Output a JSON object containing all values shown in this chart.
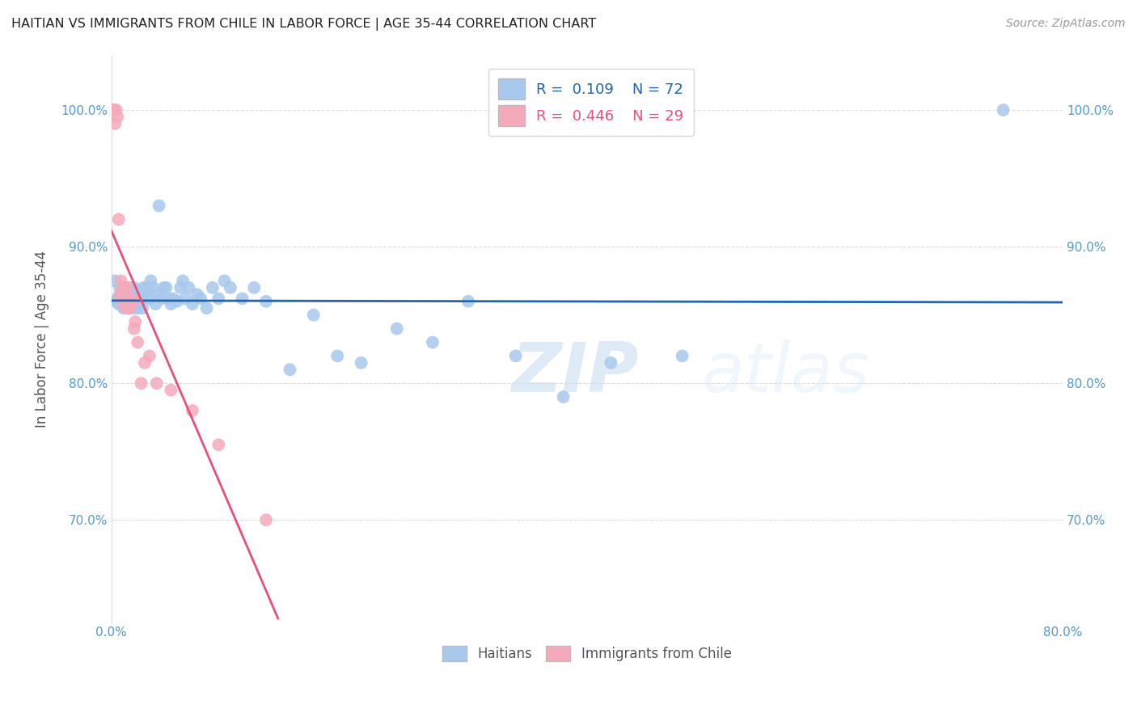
{
  "title": "HAITIAN VS IMMIGRANTS FROM CHILE IN LABOR FORCE | AGE 35-44 CORRELATION CHART",
  "source": "Source: ZipAtlas.com",
  "ylabel": "In Labor Force | Age 35-44",
  "xlim": [
    0.0,
    0.8
  ],
  "ylim": [
    0.625,
    1.04
  ],
  "xticks": [
    0.0,
    0.8
  ],
  "xticklabels": [
    "0.0%",
    "80.0%"
  ],
  "yticks": [
    0.7,
    0.8,
    0.9,
    1.0
  ],
  "yticklabels": [
    "70.0%",
    "80.0%",
    "90.0%",
    "100.0%"
  ],
  "legend_blue_r": "0.109",
  "legend_blue_n": "72",
  "legend_pink_r": "0.446",
  "legend_pink_n": "29",
  "blue_color": "#A8C8EC",
  "pink_color": "#F4AABB",
  "blue_line_color": "#2166AC",
  "pink_line_color": "#E8507A",
  "grid_color": "#DDDDDD",
  "title_color": "#333333",
  "axis_color": "#5599CC",
  "watermark_zip": "ZIP",
  "watermark_atlas": "atlas",
  "haitians_x": [
    0.003,
    0.004,
    0.005,
    0.006,
    0.007,
    0.008,
    0.009,
    0.01,
    0.01,
    0.011,
    0.012,
    0.013,
    0.014,
    0.015,
    0.015,
    0.016,
    0.016,
    0.017,
    0.018,
    0.018,
    0.019,
    0.019,
    0.02,
    0.021,
    0.022,
    0.023,
    0.024,
    0.025,
    0.026,
    0.027,
    0.028,
    0.03,
    0.032,
    0.033,
    0.035,
    0.037,
    0.038,
    0.04,
    0.042,
    0.044,
    0.046,
    0.048,
    0.05,
    0.052,
    0.055,
    0.058,
    0.06,
    0.062,
    0.065,
    0.068,
    0.072,
    0.075,
    0.08,
    0.085,
    0.09,
    0.095,
    0.1,
    0.11,
    0.12,
    0.13,
    0.15,
    0.17,
    0.19,
    0.21,
    0.24,
    0.27,
    0.3,
    0.34,
    0.38,
    0.42,
    0.48,
    0.75
  ],
  "haitians_y": [
    0.875,
    0.86,
    0.862,
    0.858,
    0.87,
    0.865,
    0.858,
    0.87,
    0.855,
    0.86,
    0.858,
    0.862,
    0.855,
    0.855,
    0.865,
    0.86,
    0.87,
    0.865,
    0.858,
    0.862,
    0.855,
    0.87,
    0.862,
    0.858,
    0.855,
    0.865,
    0.86,
    0.862,
    0.855,
    0.87,
    0.865,
    0.87,
    0.862,
    0.875,
    0.87,
    0.858,
    0.865,
    0.93,
    0.862,
    0.87,
    0.87,
    0.862,
    0.858,
    0.862,
    0.86,
    0.87,
    0.875,
    0.862,
    0.87,
    0.858,
    0.865,
    0.862,
    0.855,
    0.87,
    0.862,
    0.875,
    0.87,
    0.862,
    0.87,
    0.86,
    0.81,
    0.85,
    0.82,
    0.815,
    0.84,
    0.83,
    0.86,
    0.82,
    0.79,
    0.815,
    0.82,
    1.0
  ],
  "chile_x": [
    0.001,
    0.002,
    0.003,
    0.004,
    0.005,
    0.006,
    0.007,
    0.008,
    0.009,
    0.01,
    0.011,
    0.012,
    0.013,
    0.014,
    0.015,
    0.016,
    0.017,
    0.018,
    0.019,
    0.02,
    0.022,
    0.025,
    0.028,
    0.032,
    0.038,
    0.05,
    0.068,
    0.09,
    0.13
  ],
  "chile_y": [
    1.0,
    1.0,
    0.99,
    1.0,
    0.995,
    0.92,
    0.865,
    0.875,
    0.86,
    0.87,
    0.86,
    0.855,
    0.87,
    0.855,
    0.855,
    0.858,
    0.862,
    0.86,
    0.84,
    0.845,
    0.83,
    0.8,
    0.815,
    0.82,
    0.8,
    0.795,
    0.78,
    0.755,
    0.7
  ]
}
